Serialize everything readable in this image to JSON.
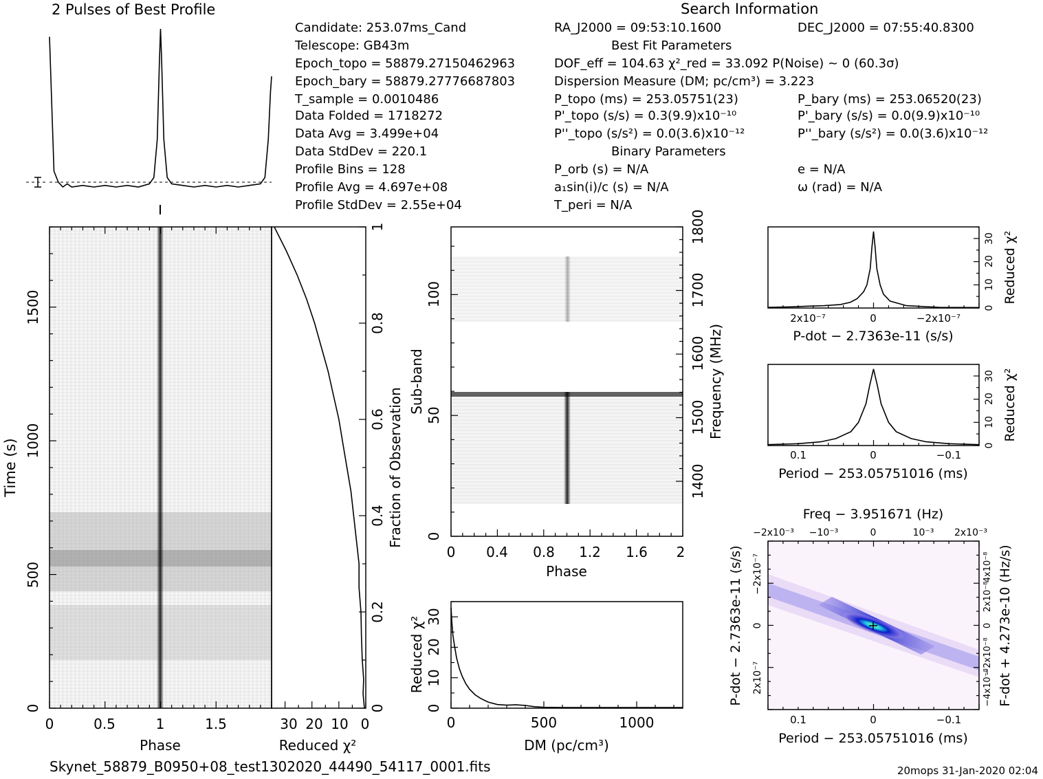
{
  "header": {
    "profile_title": "2 Pulses of Best Profile",
    "search_title": "Search Information",
    "footer_file": "Skynet_58879_B0950+08_test1302020_44490_54117_0001.fits",
    "footer_stamp": "20mops 31-Jan-2020 02:04"
  },
  "info": {
    "col1": [
      "Candidate:  253.07ms_Cand",
      "Telescope:  GB43m",
      "Epoch_topo = 58879.27150462963",
      "Epoch_bary = 58879.27776687803",
      "T_sample       =  0.0010486",
      "Data Folded     =  1718272",
      "Data Avg        =  3.499e+04",
      "Data StdDev    =  220.1",
      "Profile Bins    =  128",
      "Profile Avg     =  4.697e+08",
      "Profile StdDev =  2.55e+04"
    ],
    "ra": "RA_J2000 = 09:53:10.1600",
    "dec": "DEC_J2000 = 07:55:40.8300",
    "best_fit_title": "Best Fit Parameters",
    "dof_line": "DOF_eff = 104.63  χ²_red = 33.092  P(Noise) ~ 0   (60.3σ)",
    "dm_line": "Dispersion Measure (DM; pc/cm³) = 3.223",
    "p_topo": "P_topo (ms) =  253.05751(23)",
    "p_bary": "P_bary (ms) =  253.06520(23)",
    "pd_topo": "P'_topo (s/s) =  0.3(9.9)x10⁻¹⁰",
    "pd_bary": "P'_bary (s/s) = 0.0(9.9)x10⁻¹⁰",
    "pdd_topo": "P''_topo (s/s²) = 0.0(3.6)x10⁻¹²",
    "pdd_bary": "P''_bary (s/s²) = 0.0(3.6)x10⁻¹²",
    "binary_title": "Binary Parameters",
    "porb": "P_orb (s) = N/A",
    "e": "e = N/A",
    "asini": "a₁sin(i)/c (s) = N/A",
    "omega": "ω (rad) = N/A",
    "tperi": "T_peri = N/A"
  },
  "chart_data": [
    {
      "type": "line",
      "name": "profile",
      "title": "2 Pulses of Best Profile",
      "x_range": [
        0,
        2
      ],
      "x": [
        0.0,
        0.04,
        0.08,
        0.12,
        0.16,
        0.2,
        0.3,
        0.4,
        0.5,
        0.6,
        0.7,
        0.8,
        0.9,
        0.94,
        0.97,
        0.99,
        1.0,
        1.01,
        1.03,
        1.06,
        1.1,
        1.2,
        1.3,
        1.4,
        1.5,
        1.6,
        1.7,
        1.8,
        1.9,
        1.94,
        1.97,
        1.99,
        2.0
      ],
      "y_relative": [
        0.95,
        0.1,
        0.03,
        0.0,
        0.02,
        0.0,
        0.01,
        0.0,
        0.01,
        0.0,
        0.01,
        0.0,
        0.02,
        0.06,
        0.3,
        0.8,
        1.0,
        0.8,
        0.3,
        0.06,
        0.02,
        0.01,
        0.0,
        0.01,
        0.0,
        0.01,
        0.0,
        0.01,
        0.02,
        0.06,
        0.3,
        0.6,
        0.7
      ]
    },
    {
      "type": "heatmap",
      "name": "time_phase",
      "xlabel": "Phase",
      "ylabel": "Time (s)",
      "x_ticks": [
        "0",
        "0.5",
        "1",
        "1.5"
      ],
      "y_ticks": [
        "0",
        "500",
        "1000",
        "1500"
      ],
      "x_range": [
        0,
        2
      ],
      "y_range": [
        0,
        1800
      ]
    },
    {
      "type": "line",
      "name": "reduced_chi2_vs_fraction",
      "xlabel": "Reduced χ²",
      "ylabel": "Fraction of Observation",
      "x_ticks": [
        "30",
        "20",
        "10",
        "0"
      ],
      "y_ticks": [
        "0",
        "0.2",
        "0.4",
        "0.6",
        "0.8",
        "1"
      ],
      "x_range": [
        35,
        0
      ],
      "fraction": [
        0,
        0.03,
        0.06,
        0.1,
        0.15,
        0.2,
        0.25,
        0.3,
        0.35,
        0.4,
        0.45,
        0.5,
        0.55,
        0.6,
        0.65,
        0.7,
        0.75,
        0.8,
        0.85,
        0.9,
        0.95,
        1.0
      ],
      "chi2": [
        0.5,
        1.0,
        0.8,
        1.3,
        1.6,
        1.8,
        2.5,
        2.5,
        3.5,
        4.5,
        5.5,
        7,
        8.5,
        10,
        12,
        14,
        16.5,
        19,
        22,
        25.5,
        29.5,
        34
      ]
    },
    {
      "type": "heatmap",
      "name": "subband_phase",
      "xlabel": "Phase",
      "ylabel": "Sub-band",
      "y2label": "Frequency (MHz)",
      "x_ticks": [
        "0",
        "0.4",
        "0.8",
        "1.2",
        "1.6",
        "2"
      ],
      "y_ticks": [
        "0",
        "50",
        "100"
      ],
      "y2_ticks": [
        "1400",
        "1500",
        "1600",
        "1700",
        "1800"
      ],
      "x_range": [
        0,
        2
      ],
      "y_range": [
        0,
        128
      ],
      "freq_range": [
        1340,
        1800
      ]
    },
    {
      "type": "line",
      "name": "dm_curve",
      "xlabel": "DM (pc/cm³)",
      "ylabel": "Reduced χ²",
      "x_ticks": [
        "0",
        "500",
        "1000"
      ],
      "y_ticks": [
        "0",
        "10",
        "20",
        "30"
      ],
      "x_range": [
        0,
        1250
      ],
      "y_range": [
        0,
        35
      ],
      "x": [
        0,
        5,
        10,
        20,
        30,
        45,
        60,
        80,
        100,
        130,
        160,
        200,
        250,
        300,
        350,
        400,
        450,
        500,
        600,
        800,
        1000,
        1250
      ],
      "y": [
        33,
        28,
        24,
        20,
        16.5,
        13,
        10.5,
        8,
        6.2,
        4.4,
        3.2,
        2.0,
        1.2,
        1.0,
        1.1,
        0.9,
        0.5,
        0.3,
        0.2,
        0.2,
        0.2,
        0.2
      ]
    },
    {
      "type": "line",
      "name": "pdot_curve",
      "xlabel": "P-dot − 2.7363e-11 (s/s)",
      "ylabel": "Reduced χ²",
      "x_ticks": [
        "2x10⁻⁷",
        "0",
        "−2x10⁻⁷"
      ],
      "y_ticks": [
        "0",
        "10",
        "20",
        "30"
      ],
      "x_range": [
        3.2e-07,
        -3.2e-07
      ],
      "y_range": [
        0,
        35
      ],
      "x": [
        3.2e-07,
        2.5e-07,
        2e-07,
        1.5e-07,
        1e-07,
        7e-08,
        5e-08,
        3e-08,
        2e-08,
        1e-08,
        5e-09,
        0,
        -5e-09,
        -1e-08,
        -2e-08,
        -3e-08,
        -5e-08,
        -1e-07,
        -2e-07,
        -3.2e-07
      ],
      "y": [
        0.3,
        0.5,
        0.8,
        1.0,
        1.5,
        2.5,
        4.0,
        7.0,
        10.0,
        17.0,
        26.0,
        33.0,
        26.0,
        17.0,
        10.0,
        6.0,
        3.0,
        1.0,
        0.3,
        0.2
      ]
    },
    {
      "type": "line",
      "name": "period_curve",
      "xlabel": "Period − 253.05751016 (ms)",
      "ylabel": "Reduced χ²",
      "x_ticks": [
        "0.1",
        "0",
        "−0.1"
      ],
      "y_ticks": [
        "0",
        "10",
        "20",
        "30"
      ],
      "x_range": [
        0.14,
        -0.14
      ],
      "y_range": [
        0,
        35
      ],
      "x": [
        0.14,
        0.1,
        0.07,
        0.05,
        0.03,
        0.02,
        0.01,
        0.005,
        0.0,
        -0.005,
        -0.01,
        -0.02,
        -0.03,
        -0.05,
        -0.07,
        -0.1,
        -0.14
      ],
      "y": [
        0.4,
        0.8,
        1.6,
        3.0,
        6.0,
        10.0,
        18.0,
        26.0,
        33.0,
        26.0,
        18.0,
        10.0,
        6.0,
        3.0,
        1.6,
        0.8,
        0.4
      ]
    },
    {
      "type": "heatmap",
      "name": "p_pdot_plane",
      "title": "Freq − 3.951671 (Hz)",
      "xlabel": "Period − 253.05751016 (ms)",
      "ylabel": "P-dot − 2.7363e-11 (s/s)",
      "y2label": "F-dot + 4.273e-10 (Hz/s)",
      "x_ticks": [
        "0.1",
        "0",
        "−0.1"
      ],
      "x2_ticks": [
        "−2x10⁻³",
        "−10⁻³",
        "0",
        "10⁻³",
        "2x10⁻³"
      ],
      "y_ticks": [
        "−2x10⁻⁷",
        "0",
        "2x10⁻⁷"
      ],
      "y2_ticks": [
        "4x10⁻⁸",
        "2x10⁻⁸",
        "0",
        "−2x10⁻⁸",
        "−4x10⁻⁸"
      ]
    }
  ]
}
